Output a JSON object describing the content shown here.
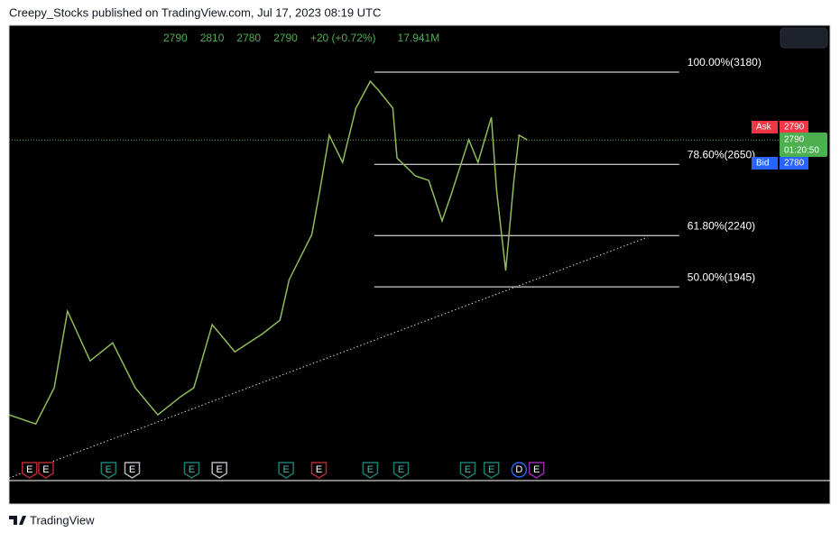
{
  "header": {
    "title": "Creepy_Stocks published on TradingView.com, Jul 17, 2023 08:19 UTC"
  },
  "footer": {
    "brand": "TradingView"
  },
  "chart_data": {
    "type": "line",
    "ohlc": [
      "2790",
      "2810",
      "2780",
      "2790",
      "+20 (+0.72%)",
      "17.941M"
    ],
    "xlim": [
      0,
      80
    ],
    "ylim": [
      830,
      3450
    ],
    "series": [
      {
        "color": "#8fbc5a",
        "x": [
          0,
          2.6,
          4.4,
          5.7,
          7.9,
          10.1,
          12.3,
          14.5,
          16.7,
          18,
          19.8,
          22,
          24.7,
          26.4,
          27.3,
          29.5,
          30.3,
          31.2,
          32.5,
          33.8,
          35.2,
          36,
          37.4,
          37.8,
          39.6,
          40.9,
          42.2,
          43.1,
          44.8,
          45.7,
          47,
          47.5,
          48.4,
          49.2,
          49.7,
          50.5
        ],
        "values": [
          1208,
          1156,
          1364,
          1805,
          1519,
          1623,
          1364,
          1208,
          1312,
          1364,
          1727,
          1571,
          1675,
          1753,
          1986,
          2246,
          2505,
          2817,
          2661,
          2973,
          3128,
          3076,
          2973,
          2687,
          2583,
          2557,
          2324,
          2480,
          2791,
          2661,
          2921,
          2505,
          2038,
          2557,
          2817,
          2790
        ]
      }
    ],
    "fib_levels": [
      {
        "label": "100.00%(3180)",
        "value": 3180
      },
      {
        "label": "78.60%(2650)",
        "value": 2650
      },
      {
        "label": "61.80%(2240)",
        "value": 2240
      },
      {
        "label": "50.00%(1945)",
        "value": 1945
      }
    ],
    "fib_x": [
      35.6,
      65.3
    ],
    "trendline": {
      "x": [
        0,
        62.2
      ],
      "values": [
        845,
        2230
      ]
    },
    "last_price": {
      "value": 2790,
      "label": "2790",
      "countdown": "01:20:50",
      "color": "#4caf50"
    },
    "ask": {
      "name": "Ask",
      "label": "2790",
      "color": "#f23645"
    },
    "bid": {
      "name": "Bid",
      "label": "2780",
      "color": "#2962ff"
    },
    "events": [
      {
        "label": "E",
        "x": 2.0,
        "color": "#b22833"
      },
      {
        "label": "E",
        "x": 3.6,
        "color": "#b22833"
      },
      {
        "label": "E",
        "x": 9.7,
        "color": "#1e7b72"
      },
      {
        "label": "E",
        "x": 12.0,
        "color": "#b2b5be"
      },
      {
        "label": "E",
        "x": 17.8,
        "color": "#1e7b72"
      },
      {
        "label": "E",
        "x": 20.5,
        "color": "#b2b5be"
      },
      {
        "label": "E",
        "x": 27.0,
        "color": "#1e7b72"
      },
      {
        "label": "E",
        "x": 30.2,
        "color": "#b22833"
      },
      {
        "label": "E",
        "x": 35.2,
        "color": "#1e7b72"
      },
      {
        "label": "E",
        "x": 38.2,
        "color": "#1e7b72"
      },
      {
        "label": "E",
        "x": 44.7,
        "color": "#1e7b72"
      },
      {
        "label": "E",
        "x": 47.0,
        "color": "#1e7b72"
      },
      {
        "label": "D",
        "x": 49.7,
        "color": "#2962ff"
      },
      {
        "label": "E",
        "x": 51.4,
        "color": "#9c27b0"
      }
    ]
  }
}
